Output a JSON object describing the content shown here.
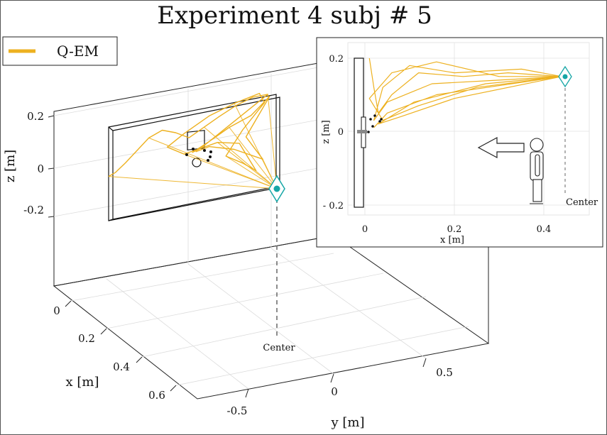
{
  "chart_data": [
    {
      "type": "line",
      "title": "Experiment 4 subj # 5",
      "view": "3d",
      "xlabel": "x [m]",
      "ylabel": "y [m]",
      "zlabel": "z [m]",
      "x_ticks": [
        "0",
        "0.2",
        "0.4",
        "0.6"
      ],
      "y_ticks": [
        "-0.5",
        "0",
        "0.5"
      ],
      "z_ticks": [
        "0.2",
        "0",
        "-0.2"
      ],
      "xlim": [
        0,
        0.7
      ],
      "ylim": [
        -0.7,
        0.7
      ],
      "zlim": [
        -0.3,
        0.3
      ],
      "grid": true,
      "legend": {
        "position": "top-left",
        "entries": [
          "Q-EM"
        ]
      },
      "series": [
        {
          "name": "Q-EM",
          "color": "#EDB120",
          "points": [
            {
              "y": -0.5,
              "z": -0.01
            },
            {
              "y": -0.46,
              "z": 0.0
            },
            {
              "y": -0.4,
              "z": 0.03
            },
            {
              "y": -0.33,
              "z": 0.07
            },
            {
              "y": -0.26,
              "z": 0.11
            },
            {
              "y": -0.18,
              "z": 0.13
            },
            {
              "y": -0.1,
              "z": 0.11
            },
            {
              "y": -0.02,
              "z": 0.08
            },
            {
              "y": 0.07,
              "z": 0.11
            },
            {
              "y": 0.16,
              "z": 0.14
            },
            {
              "y": 0.26,
              "z": 0.17
            },
            {
              "y": 0.36,
              "z": 0.19
            },
            {
              "y": 0.45,
              "z": 0.19
            },
            {
              "y": 0.3,
              "z": 0.13
            },
            {
              "y": 0.15,
              "z": 0.07
            },
            {
              "y": 0.05,
              "z": 0.03
            },
            {
              "y": -0.05,
              "z": 0.02
            },
            {
              "y": -0.15,
              "z": 0.06
            },
            {
              "y": -0.05,
              "z": 0.1
            },
            {
              "y": 0.1,
              "z": 0.15
            },
            {
              "y": 0.25,
              "z": 0.18
            },
            {
              "y": 0.4,
              "z": 0.2
            },
            {
              "y": 0.43,
              "z": 0.16
            },
            {
              "y": 0.3,
              "z": 0.07
            },
            {
              "y": 0.2,
              "z": -0.02
            },
            {
              "y": 0.3,
              "z": -0.06
            },
            {
              "y": 0.38,
              "z": -0.1
            },
            {
              "y": 0.28,
              "z": 0.02
            },
            {
              "y": 0.15,
              "z": 0.04
            },
            {
              "y": 0.05,
              "z": 0.03
            },
            {
              "y": 0.0,
              "z": 0.02
            },
            {
              "y": 0.1,
              "z": 0.05
            },
            {
              "y": 0.22,
              "z": 0.09
            },
            {
              "y": 0.35,
              "z": 0.12
            },
            {
              "y": 0.46,
              "z": 0.18
            },
            {
              "y": 0.32,
              "z": 0.04
            },
            {
              "y": 0.42,
              "z": -0.06
            },
            {
              "y": 0.25,
              "z": 0.0
            },
            {
              "y": 0.1,
              "z": 0.03
            },
            {
              "y": 0.02,
              "z": 0.02
            }
          ]
        }
      ],
      "marker": {
        "label": "Center",
        "color": "#16A6A6"
      }
    },
    {
      "type": "line",
      "view": "inset-xz",
      "xlabel": "x [m]",
      "ylabel": "z [m]",
      "x_ticks": [
        "0",
        "0.2",
        "0.4"
      ],
      "y_ticks": [
        "0.2",
        "0",
        "- 0.2"
      ],
      "xlim": [
        -0.03,
        0.52
      ],
      "ylim": [
        -0.22,
        0.22
      ],
      "grid": true,
      "series": [
        {
          "name": "Q-EM",
          "color": "#EDB120",
          "points": [
            {
              "x": 0.01,
              "z": 0.2
            },
            {
              "x": 0.02,
              "z": 0.12
            },
            {
              "x": 0.03,
              "z": 0.05
            },
            {
              "x": 0.06,
              "z": 0.1
            },
            {
              "x": 0.12,
              "z": 0.16
            },
            {
              "x": 0.22,
              "z": 0.15
            },
            {
              "x": 0.32,
              "z": 0.16
            },
            {
              "x": 0.44,
              "z": 0.15
            },
            {
              "x": 0.3,
              "z": 0.14
            },
            {
              "x": 0.15,
              "z": 0.13
            },
            {
              "x": 0.05,
              "z": 0.08
            },
            {
              "x": 0.02,
              "z": 0.03
            },
            {
              "x": 0.04,
              "z": 0.12
            },
            {
              "x": 0.1,
              "z": 0.18
            },
            {
              "x": 0.2,
              "z": 0.16
            },
            {
              "x": 0.35,
              "z": 0.17
            },
            {
              "x": 0.44,
              "z": 0.15
            },
            {
              "x": 0.25,
              "z": 0.12
            },
            {
              "x": 0.12,
              "z": 0.07
            },
            {
              "x": 0.04,
              "z": 0.03
            },
            {
              "x": 0.01,
              "z": 0.09
            },
            {
              "x": 0.06,
              "z": 0.16
            },
            {
              "x": 0.16,
              "z": 0.19
            },
            {
              "x": 0.3,
              "z": 0.15
            },
            {
              "x": 0.44,
              "z": 0.15
            },
            {
              "x": 0.2,
              "z": 0.09
            },
            {
              "x": 0.08,
              "z": 0.04
            },
            {
              "x": 0.03,
              "z": 0.02
            },
            {
              "x": 0.11,
              "z": 0.08
            },
            {
              "x": 0.27,
              "z": 0.13
            },
            {
              "x": 0.44,
              "z": 0.15
            },
            {
              "x": 0.16,
              "z": 0.1
            },
            {
              "x": 0.05,
              "z": 0.05
            },
            {
              "x": 0.02,
              "z": 0.01
            }
          ]
        }
      ],
      "marker": {
        "label": "Center",
        "x": 0.44,
        "z": 0.15
      }
    }
  ]
}
